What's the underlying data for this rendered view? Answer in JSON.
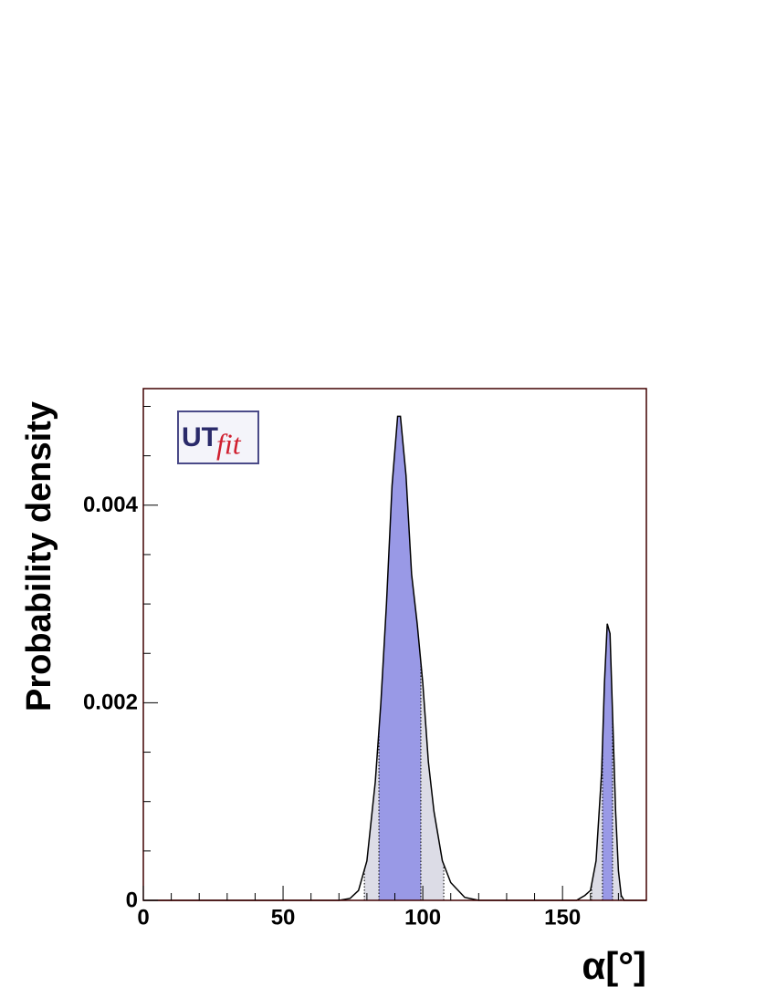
{
  "chart_data": {
    "type": "line",
    "x_label": "α[°]",
    "y_label": "Probability density",
    "logo": {
      "ut": "UT",
      "fit": "fit"
    },
    "x": [
      0,
      70,
      74,
      77,
      80,
      83,
      85,
      87,
      89,
      91,
      92,
      94,
      96,
      98,
      100,
      102,
      104,
      107,
      110,
      115,
      120,
      155,
      158,
      160,
      162,
      164,
      165,
      166,
      167,
      168,
      169,
      170,
      171,
      172,
      180
    ],
    "series": [
      {
        "color": "#000000",
        "values": [
          0,
          0,
          2e-05,
          0.0001,
          0.0004,
          0.0012,
          0.002,
          0.003,
          0.0042,
          0.0049,
          0.0049,
          0.0043,
          0.0033,
          0.0028,
          0.0022,
          0.0014,
          0.0009,
          0.0004,
          0.00018,
          3e-05,
          0,
          0,
          5e-05,
          0.0001,
          0.0004,
          0.0013,
          0.0022,
          0.0028,
          0.0027,
          0.0018,
          0.0009,
          0.0003,
          5e-05,
          0,
          0
        ]
      }
    ],
    "intervals": [
      {
        "color": "#dcdce6",
        "ranges": [
          [
            79.1,
            107.5
          ],
          [
            160.4,
            170.9
          ]
        ]
      },
      {
        "color": "#9999e6",
        "ranges": [
          [
            84.3,
            99.3
          ],
          [
            164.3,
            167.9
          ]
        ]
      }
    ],
    "xlim": [
      0,
      180
    ],
    "xticks": [
      0,
      50,
      100,
      150
    ],
    "xminorticks": [
      10,
      20,
      30,
      40,
      60,
      70,
      80,
      90,
      110,
      120,
      130,
      140,
      160,
      170
    ],
    "ylim": [
      0,
      0.00518
    ],
    "yticks": [
      0,
      0.002,
      0.004
    ],
    "yminorticks": [
      0.0005,
      0.001,
      0.0015,
      0.0025,
      0.003,
      0.0035,
      0.0045,
      0.005
    ]
  }
}
